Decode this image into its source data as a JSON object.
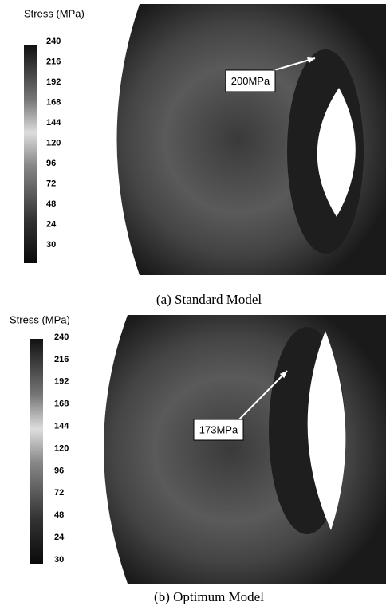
{
  "panels": [
    {
      "legend_title": "Stress (MPa)",
      "legend_ticks": [
        240,
        216,
        192,
        168,
        144,
        120,
        96,
        72,
        48,
        24,
        30
      ],
      "annotation": "200MPa",
      "caption": "(a) Standard Model"
    },
    {
      "legend_title": "Stress (MPa)",
      "legend_ticks": [
        240,
        216,
        192,
        168,
        144,
        120,
        96,
        72,
        48,
        24,
        30
      ],
      "annotation": "173MPa",
      "caption": "(b) Optimum Model"
    }
  ]
}
